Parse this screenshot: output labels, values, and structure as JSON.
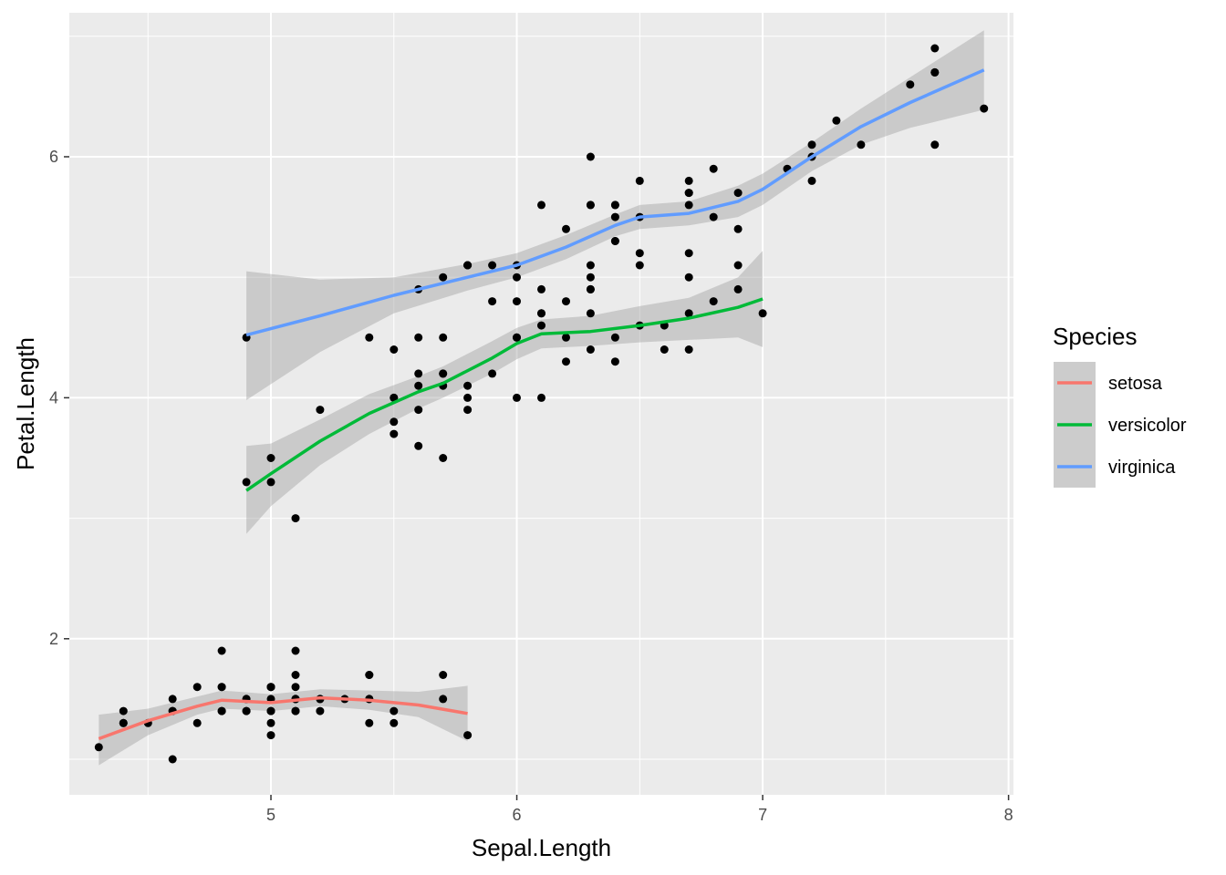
{
  "chart_data": {
    "type": "scatter",
    "xlabel": "Sepal.Length",
    "ylabel": "Petal.Length",
    "xlim": [
      4.18,
      8.02
    ],
    "ylim": [
      0.705,
      7.195
    ],
    "x_ticks": [
      5,
      6,
      7,
      8
    ],
    "y_ticks": [
      2,
      4,
      6
    ],
    "grid": true,
    "legend_position": "right",
    "legend_title": "Species",
    "points": [
      [
        5.1,
        1.4
      ],
      [
        4.9,
        1.4
      ],
      [
        4.7,
        1.3
      ],
      [
        4.6,
        1.5
      ],
      [
        5.0,
        1.4
      ],
      [
        5.4,
        1.7
      ],
      [
        4.6,
        1.4
      ],
      [
        5.0,
        1.5
      ],
      [
        4.4,
        1.4
      ],
      [
        4.9,
        1.5
      ],
      [
        5.4,
        1.5
      ],
      [
        4.8,
        1.6
      ],
      [
        4.8,
        1.4
      ],
      [
        4.3,
        1.1
      ],
      [
        5.8,
        1.2
      ],
      [
        5.7,
        1.5
      ],
      [
        5.4,
        1.3
      ],
      [
        5.1,
        1.4
      ],
      [
        5.7,
        1.7
      ],
      [
        5.1,
        1.5
      ],
      [
        5.4,
        1.7
      ],
      [
        5.1,
        1.5
      ],
      [
        4.6,
        1.0
      ],
      [
        5.1,
        1.7
      ],
      [
        4.8,
        1.9
      ],
      [
        5.0,
        1.6
      ],
      [
        5.0,
        1.6
      ],
      [
        5.2,
        1.5
      ],
      [
        5.2,
        1.4
      ],
      [
        4.7,
        1.6
      ],
      [
        4.8,
        1.6
      ],
      [
        5.4,
        1.5
      ],
      [
        5.2,
        1.5
      ],
      [
        5.5,
        1.4
      ],
      [
        4.9,
        1.5
      ],
      [
        5.0,
        1.2
      ],
      [
        5.5,
        1.3
      ],
      [
        4.9,
        1.4
      ],
      [
        4.4,
        1.3
      ],
      [
        5.1,
        1.5
      ],
      [
        5.0,
        1.3
      ],
      [
        4.5,
        1.3
      ],
      [
        4.4,
        1.3
      ],
      [
        5.0,
        1.6
      ],
      [
        5.1,
        1.9
      ],
      [
        4.8,
        1.4
      ],
      [
        5.1,
        1.6
      ],
      [
        4.6,
        1.4
      ],
      [
        5.3,
        1.5
      ],
      [
        5.0,
        1.4
      ],
      [
        7.0,
        4.7
      ],
      [
        6.4,
        4.5
      ],
      [
        6.9,
        4.9
      ],
      [
        5.5,
        4.0
      ],
      [
        6.5,
        4.6
      ],
      [
        5.7,
        4.5
      ],
      [
        6.3,
        4.7
      ],
      [
        4.9,
        3.3
      ],
      [
        6.6,
        4.6
      ],
      [
        5.2,
        3.9
      ],
      [
        5.0,
        3.5
      ],
      [
        5.9,
        4.2
      ],
      [
        6.0,
        4.0
      ],
      [
        6.1,
        4.7
      ],
      [
        5.6,
        3.6
      ],
      [
        6.7,
        4.4
      ],
      [
        5.6,
        4.5
      ],
      [
        5.8,
        4.1
      ],
      [
        6.2,
        4.5
      ],
      [
        5.6,
        3.9
      ],
      [
        5.9,
        4.8
      ],
      [
        6.1,
        4.0
      ],
      [
        6.3,
        4.9
      ],
      [
        6.1,
        4.7
      ],
      [
        6.4,
        4.3
      ],
      [
        6.6,
        4.4
      ],
      [
        6.8,
        4.8
      ],
      [
        6.7,
        5.0
      ],
      [
        6.0,
        4.5
      ],
      [
        5.7,
        3.5
      ],
      [
        5.5,
        3.8
      ],
      [
        5.5,
        3.7
      ],
      [
        5.8,
        3.9
      ],
      [
        6.0,
        5.1
      ],
      [
        5.4,
        4.5
      ],
      [
        6.0,
        4.5
      ],
      [
        6.7,
        4.7
      ],
      [
        6.3,
        4.4
      ],
      [
        5.6,
        4.1
      ],
      [
        5.5,
        4.0
      ],
      [
        5.5,
        4.4
      ],
      [
        6.1,
        4.6
      ],
      [
        5.8,
        4.0
      ],
      [
        5.0,
        3.3
      ],
      [
        5.6,
        4.2
      ],
      [
        5.7,
        4.2
      ],
      [
        5.7,
        4.2
      ],
      [
        6.2,
        4.3
      ],
      [
        5.1,
        3.0
      ],
      [
        5.7,
        4.1
      ],
      [
        6.3,
        6.0
      ],
      [
        5.8,
        5.1
      ],
      [
        7.1,
        5.9
      ],
      [
        6.3,
        5.6
      ],
      [
        6.5,
        5.8
      ],
      [
        7.6,
        6.6
      ],
      [
        4.9,
        4.5
      ],
      [
        7.3,
        6.3
      ],
      [
        6.7,
        5.8
      ],
      [
        7.2,
        6.1
      ],
      [
        6.5,
        5.1
      ],
      [
        6.4,
        5.3
      ],
      [
        6.8,
        5.5
      ],
      [
        5.7,
        5.0
      ],
      [
        5.8,
        5.1
      ],
      [
        6.4,
        5.3
      ],
      [
        6.5,
        5.5
      ],
      [
        7.7,
        6.7
      ],
      [
        7.7,
        6.9
      ],
      [
        6.0,
        5.0
      ],
      [
        6.9,
        5.7
      ],
      [
        5.6,
        4.9
      ],
      [
        7.7,
        6.7
      ],
      [
        6.3,
        4.9
      ],
      [
        6.7,
        5.7
      ],
      [
        7.2,
        6.0
      ],
      [
        6.2,
        4.8
      ],
      [
        6.1,
        4.9
      ],
      [
        6.4,
        5.6
      ],
      [
        7.2,
        5.8
      ],
      [
        7.4,
        6.1
      ],
      [
        7.9,
        6.4
      ],
      [
        6.4,
        5.6
      ],
      [
        6.3,
        5.1
      ],
      [
        6.1,
        5.6
      ],
      [
        7.7,
        6.1
      ],
      [
        6.3,
        5.6
      ],
      [
        6.4,
        5.5
      ],
      [
        6.0,
        4.8
      ],
      [
        6.9,
        5.4
      ],
      [
        6.7,
        5.6
      ],
      [
        6.9,
        5.1
      ],
      [
        5.8,
        5.1
      ],
      [
        6.8,
        5.9
      ],
      [
        6.7,
        5.7
      ],
      [
        6.7,
        5.2
      ],
      [
        6.3,
        5.0
      ],
      [
        6.5,
        5.2
      ],
      [
        6.2,
        5.4
      ],
      [
        5.9,
        5.1
      ]
    ],
    "series": [
      {
        "name": "setosa",
        "color": "#F8766D",
        "smooth": [
          [
            4.3,
            1.17
          ],
          [
            4.5,
            1.32
          ],
          [
            4.7,
            1.44
          ],
          [
            4.8,
            1.49
          ],
          [
            5.0,
            1.47
          ],
          [
            5.1,
            1.49
          ],
          [
            5.2,
            1.51
          ],
          [
            5.4,
            1.49
          ],
          [
            5.6,
            1.45
          ],
          [
            5.8,
            1.38
          ]
        ],
        "band_upper": [
          [
            4.3,
            1.37
          ],
          [
            4.5,
            1.42
          ],
          [
            4.7,
            1.52
          ],
          [
            4.8,
            1.57
          ],
          [
            5.0,
            1.54
          ],
          [
            5.1,
            1.56
          ],
          [
            5.2,
            1.58
          ],
          [
            5.4,
            1.57
          ],
          [
            5.6,
            1.56
          ],
          [
            5.8,
            1.61
          ]
        ],
        "band_lower": [
          [
            4.3,
            0.95
          ],
          [
            4.5,
            1.2
          ],
          [
            4.7,
            1.37
          ],
          [
            4.8,
            1.42
          ],
          [
            5.0,
            1.4
          ],
          [
            5.1,
            1.42
          ],
          [
            5.2,
            1.44
          ],
          [
            5.4,
            1.41
          ],
          [
            5.6,
            1.35
          ],
          [
            5.8,
            1.15
          ]
        ]
      },
      {
        "name": "versicolor",
        "color": "#00BA38",
        "smooth": [
          [
            4.9,
            3.23
          ],
          [
            5.0,
            3.37
          ],
          [
            5.2,
            3.64
          ],
          [
            5.4,
            3.87
          ],
          [
            5.6,
            4.05
          ],
          [
            5.7,
            4.12
          ],
          [
            5.9,
            4.33
          ],
          [
            6.0,
            4.45
          ],
          [
            6.1,
            4.53
          ],
          [
            6.3,
            4.55
          ],
          [
            6.5,
            4.6
          ],
          [
            6.7,
            4.66
          ],
          [
            6.9,
            4.75
          ],
          [
            7.0,
            4.82
          ]
        ],
        "band_upper": [
          [
            4.9,
            3.6
          ],
          [
            5.0,
            3.62
          ],
          [
            5.2,
            3.82
          ],
          [
            5.4,
            4.03
          ],
          [
            5.6,
            4.18
          ],
          [
            5.7,
            4.26
          ],
          [
            5.9,
            4.47
          ],
          [
            6.0,
            4.58
          ],
          [
            6.1,
            4.65
          ],
          [
            6.3,
            4.68
          ],
          [
            6.5,
            4.76
          ],
          [
            6.7,
            4.83
          ],
          [
            6.9,
            5.0
          ],
          [
            7.0,
            5.22
          ]
        ],
        "band_lower": [
          [
            4.9,
            2.87
          ],
          [
            5.0,
            3.1
          ],
          [
            5.2,
            3.44
          ],
          [
            5.4,
            3.7
          ],
          [
            5.6,
            3.91
          ],
          [
            5.7,
            4.0
          ],
          [
            5.9,
            4.2
          ],
          [
            6.0,
            4.32
          ],
          [
            6.1,
            4.41
          ],
          [
            6.3,
            4.43
          ],
          [
            6.5,
            4.46
          ],
          [
            6.7,
            4.48
          ],
          [
            6.9,
            4.5
          ],
          [
            7.0,
            4.42
          ]
        ]
      },
      {
        "name": "virginica",
        "color": "#619CFF",
        "smooth": [
          [
            4.9,
            4.52
          ],
          [
            5.2,
            4.68
          ],
          [
            5.5,
            4.85
          ],
          [
            5.8,
            5.0
          ],
          [
            6.0,
            5.1
          ],
          [
            6.2,
            5.25
          ],
          [
            6.4,
            5.43
          ],
          [
            6.5,
            5.5
          ],
          [
            6.7,
            5.53
          ],
          [
            6.9,
            5.63
          ],
          [
            7.0,
            5.73
          ],
          [
            7.2,
            6.0
          ],
          [
            7.4,
            6.25
          ],
          [
            7.6,
            6.45
          ],
          [
            7.9,
            6.72
          ]
        ],
        "band_upper": [
          [
            4.9,
            5.05
          ],
          [
            5.2,
            4.98
          ],
          [
            5.5,
            5.0
          ],
          [
            5.8,
            5.11
          ],
          [
            6.0,
            5.2
          ],
          [
            6.2,
            5.35
          ],
          [
            6.4,
            5.52
          ],
          [
            6.5,
            5.6
          ],
          [
            6.7,
            5.63
          ],
          [
            6.9,
            5.76
          ],
          [
            7.0,
            5.86
          ],
          [
            7.2,
            6.12
          ],
          [
            7.4,
            6.4
          ],
          [
            7.6,
            6.66
          ],
          [
            7.9,
            7.05
          ]
        ],
        "band_lower": [
          [
            4.9,
            3.98
          ],
          [
            5.2,
            4.38
          ],
          [
            5.5,
            4.7
          ],
          [
            5.8,
            4.89
          ],
          [
            6.0,
            5.0
          ],
          [
            6.2,
            5.15
          ],
          [
            6.4,
            5.34
          ],
          [
            6.5,
            5.4
          ],
          [
            6.7,
            5.43
          ],
          [
            6.9,
            5.5
          ],
          [
            7.0,
            5.6
          ],
          [
            7.2,
            5.88
          ],
          [
            7.4,
            6.1
          ],
          [
            7.6,
            6.24
          ],
          [
            7.9,
            6.39
          ]
        ]
      }
    ]
  }
}
